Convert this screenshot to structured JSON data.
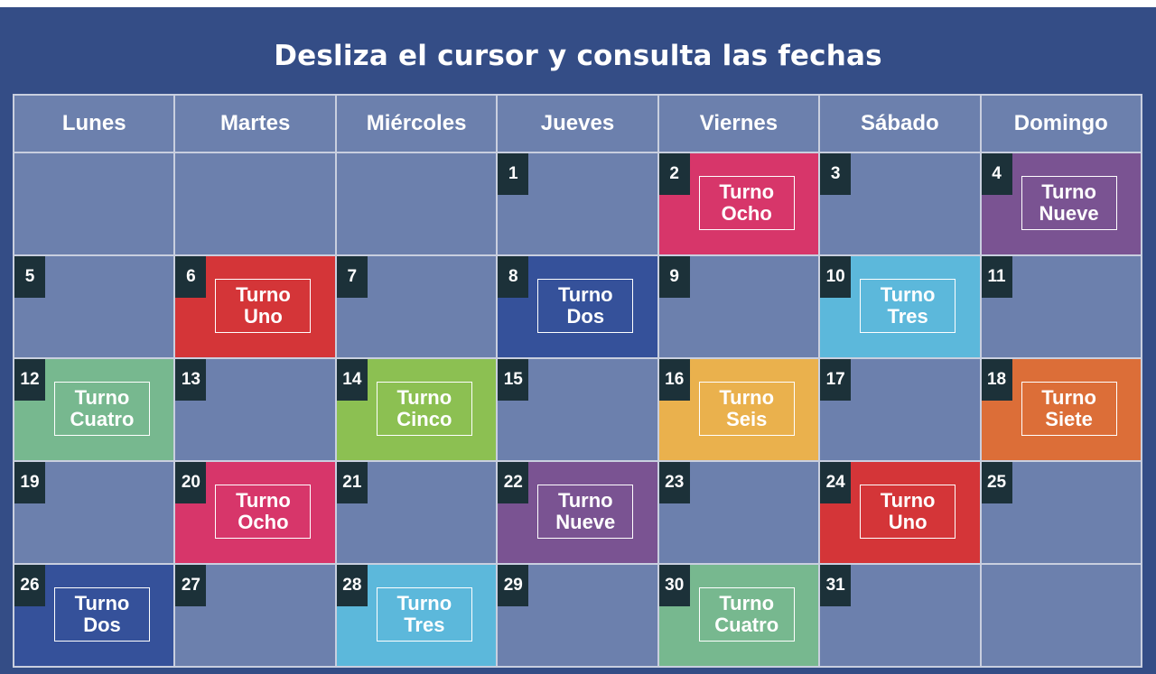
{
  "title": "Desliza el cursor y consulta las fechas",
  "weekdays": [
    "Lunes",
    "Martes",
    "Miércoles",
    "Jueves",
    "Viernes",
    "Sábado",
    "Domingo"
  ],
  "days": [
    {
      "num": "",
      "shift": null,
      "color": null
    },
    {
      "num": "",
      "shift": null,
      "color": null
    },
    {
      "num": "",
      "shift": null,
      "color": null
    },
    {
      "num": "1",
      "shift": null,
      "color": null
    },
    {
      "num": "2",
      "shift": [
        "Turno",
        "Ocho"
      ],
      "color": "#d7366a"
    },
    {
      "num": "3",
      "shift": null,
      "color": null
    },
    {
      "num": "4",
      "shift": [
        "Turno",
        "Nueve"
      ],
      "color": "#7a5392"
    },
    {
      "num": "5",
      "shift": null,
      "color": null
    },
    {
      "num": "6",
      "shift": [
        "Turno",
        "Uno"
      ],
      "color": "#d43538"
    },
    {
      "num": "7",
      "shift": null,
      "color": null
    },
    {
      "num": "8",
      "shift": [
        "Turno",
        "Dos"
      ],
      "color": "#35519a"
    },
    {
      "num": "9",
      "shift": null,
      "color": null
    },
    {
      "num": "10",
      "shift": [
        "Turno",
        "Tres"
      ],
      "color": "#5cb8db"
    },
    {
      "num": "11",
      "shift": null,
      "color": null
    },
    {
      "num": "12",
      "shift": [
        "Turno",
        "Cuatro"
      ],
      "color": "#77b88f"
    },
    {
      "num": "13",
      "shift": null,
      "color": null
    },
    {
      "num": "14",
      "shift": [
        "Turno",
        "Cinco"
      ],
      "color": "#8cc052"
    },
    {
      "num": "15",
      "shift": null,
      "color": null
    },
    {
      "num": "16",
      "shift": [
        "Turno",
        "Seis"
      ],
      "color": "#eab14d"
    },
    {
      "num": "17",
      "shift": null,
      "color": null
    },
    {
      "num": "18",
      "shift": [
        "Turno",
        "Siete"
      ],
      "color": "#dc6e38"
    },
    {
      "num": "19",
      "shift": null,
      "color": null
    },
    {
      "num": "20",
      "shift": [
        "Turno",
        "Ocho"
      ],
      "color": "#d7366a"
    },
    {
      "num": "21",
      "shift": null,
      "color": null
    },
    {
      "num": "22",
      "shift": [
        "Turno",
        "Nueve"
      ],
      "color": "#7a5392"
    },
    {
      "num": "23",
      "shift": null,
      "color": null
    },
    {
      "num": "24",
      "shift": [
        "Turno",
        "Uno"
      ],
      "color": "#d43538"
    },
    {
      "num": "25",
      "shift": null,
      "color": null
    },
    {
      "num": "26",
      "shift": [
        "Turno",
        "Dos"
      ],
      "color": "#35519a"
    },
    {
      "num": "27",
      "shift": null,
      "color": null
    },
    {
      "num": "28",
      "shift": [
        "Turno",
        "Tres"
      ],
      "color": "#5cb8db"
    },
    {
      "num": "29",
      "shift": null,
      "color": null
    },
    {
      "num": "30",
      "shift": [
        "Turno",
        "Cuatro"
      ],
      "color": "#77b88f"
    },
    {
      "num": "31",
      "shift": null,
      "color": null
    },
    {
      "num": "",
      "shift": null,
      "color": null
    }
  ],
  "colors": {
    "panel": "#344d86",
    "cell": "#6c80ad",
    "day_number_badge": "#1c3139",
    "grid_lines": "#c9cfdf"
  }
}
